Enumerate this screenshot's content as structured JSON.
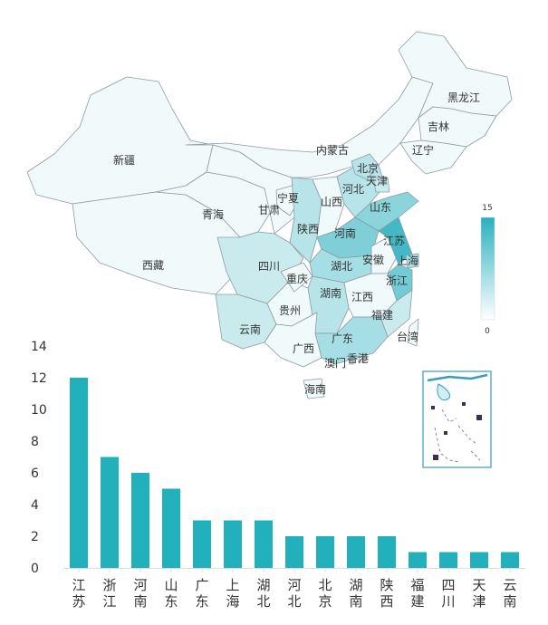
{
  "chart_data": [
    {
      "type": "map",
      "visual_map": {
        "min": 0,
        "max": 15,
        "min_label": "0",
        "max_label": "15",
        "color_low": "#ffffff",
        "color_high": "#2ab0bf"
      },
      "regions": [
        {
          "name": "新疆",
          "value": 0
        },
        {
          "name": "西藏",
          "value": 0
        },
        {
          "name": "青海",
          "value": 0
        },
        {
          "name": "甘肃",
          "value": 0
        },
        {
          "name": "内蒙古",
          "value": 0
        },
        {
          "name": "黑龙江",
          "value": 0
        },
        {
          "name": "吉林",
          "value": 0
        },
        {
          "name": "辽宁",
          "value": 0
        },
        {
          "name": "宁夏",
          "value": 0
        },
        {
          "name": "四川",
          "value": 1
        },
        {
          "name": "云南",
          "value": 1
        },
        {
          "name": "贵州",
          "value": 0
        },
        {
          "name": "重庆",
          "value": 0
        },
        {
          "name": "陕西",
          "value": 2
        },
        {
          "name": "山西",
          "value": 0
        },
        {
          "name": "河北",
          "value": 2
        },
        {
          "name": "北京",
          "value": 2
        },
        {
          "name": "天津",
          "value": 1
        },
        {
          "name": "山东",
          "value": 5
        },
        {
          "name": "河南",
          "value": 6
        },
        {
          "name": "湖北",
          "value": 3
        },
        {
          "name": "湖南",
          "value": 2
        },
        {
          "name": "安徽",
          "value": 0
        },
        {
          "name": "江苏",
          "value": 12
        },
        {
          "name": "上海",
          "value": 3
        },
        {
          "name": "浙江",
          "value": 7
        },
        {
          "name": "江西",
          "value": 0
        },
        {
          "name": "福建",
          "value": 1
        },
        {
          "name": "广东",
          "value": 3
        },
        {
          "name": "广西",
          "value": 0
        },
        {
          "name": "海南",
          "value": 0
        },
        {
          "name": "台湾",
          "value": 0
        },
        {
          "name": "香港",
          "value": 0
        },
        {
          "name": "澳门",
          "value": 0
        }
      ]
    },
    {
      "type": "bar",
      "categories": [
        "江苏",
        "浙江",
        "河南",
        "山东",
        "广东",
        "上海",
        "湖北",
        "河北",
        "北京",
        "湖南",
        "陕西",
        "福建",
        "四川",
        "天津",
        "云南"
      ],
      "values": [
        12,
        7,
        6,
        5,
        3,
        3,
        3,
        2,
        2,
        2,
        2,
        1,
        1,
        1,
        1
      ],
      "ylim": [
        0,
        14
      ],
      "yticks": [
        0,
        2,
        4,
        6,
        8,
        10,
        12,
        14
      ],
      "bar_color": "#22b0bd",
      "grid": false
    }
  ]
}
